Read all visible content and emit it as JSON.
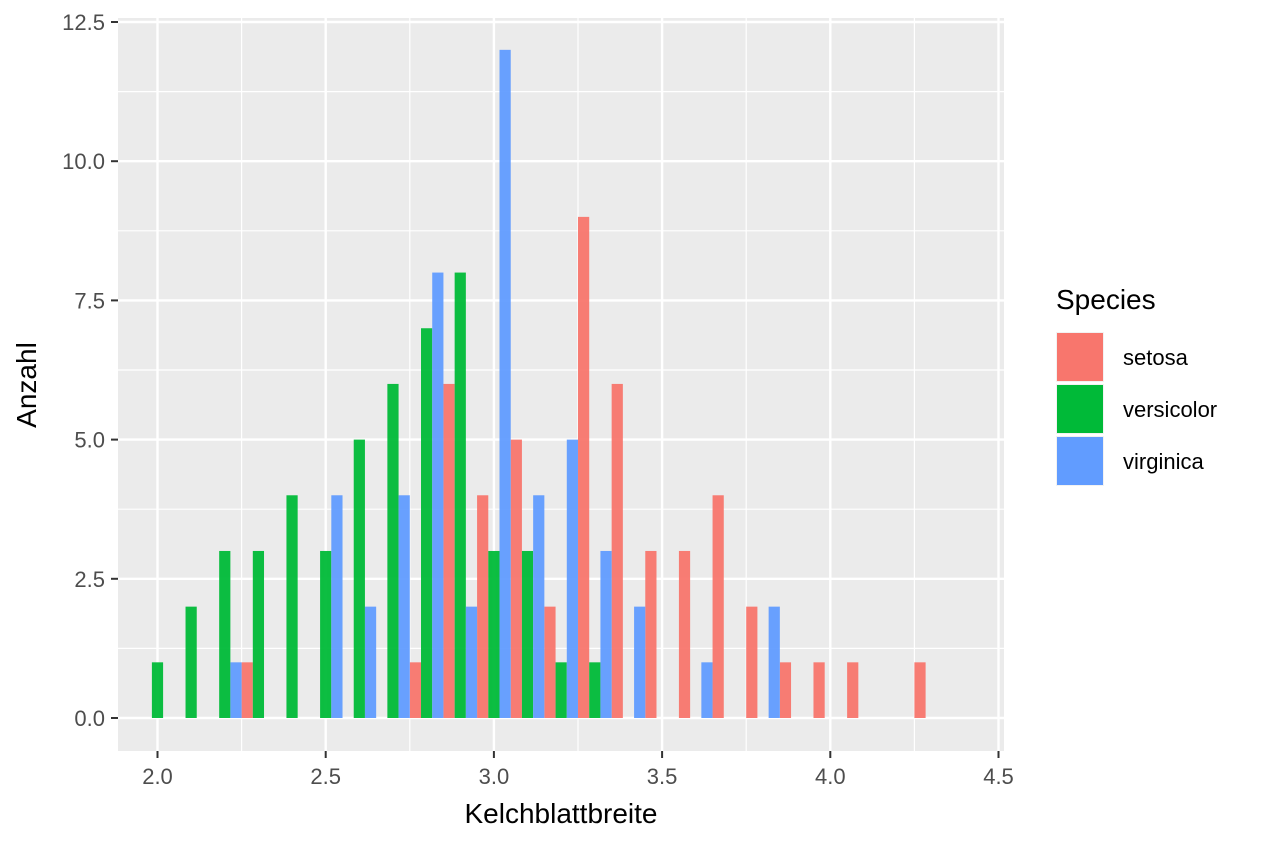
{
  "chart_data": {
    "type": "bar",
    "xlabel": "Kelchblattbreite",
    "ylabel": "Anzahl",
    "xlim": [
      2.0,
      4.5
    ],
    "ylim": [
      0,
      12.5
    ],
    "x_ticks": [
      "2.0",
      "2.5",
      "3.0",
      "3.5",
      "4.0",
      "4.5"
    ],
    "y_ticks": [
      "0.0",
      "2.5",
      "5.0",
      "7.5",
      "10.0",
      "12.5"
    ],
    "grid": true,
    "legend_position": "right",
    "legend_title": "Species",
    "background": "#ebebeb",
    "series": [
      {
        "name": "setosa",
        "color": "#f8766d",
        "points": [
          {
            "x": 2.3,
            "y": 1
          },
          {
            "x": 2.8,
            "y": 1
          },
          {
            "x": 2.9,
            "y": 6
          },
          {
            "x": 3.0,
            "y": 4
          },
          {
            "x": 3.1,
            "y": 5
          },
          {
            "x": 3.2,
            "y": 2
          },
          {
            "x": 3.3,
            "y": 9
          },
          {
            "x": 3.4,
            "y": 6
          },
          {
            "x": 3.5,
            "y": 3
          },
          {
            "x": 3.6,
            "y": 3
          },
          {
            "x": 3.7,
            "y": 4
          },
          {
            "x": 3.8,
            "y": 2
          },
          {
            "x": 3.9,
            "y": 1
          },
          {
            "x": 4.0,
            "y": 1
          },
          {
            "x": 4.1,
            "y": 1
          },
          {
            "x": 4.3,
            "y": 1
          }
        ]
      },
      {
        "name": "versicolor",
        "color": "#00ba38",
        "points": [
          {
            "x": 2.0,
            "y": 1
          },
          {
            "x": 2.1,
            "y": 2
          },
          {
            "x": 2.2,
            "y": 3
          },
          {
            "x": 2.3,
            "y": 3
          },
          {
            "x": 2.4,
            "y": 4
          },
          {
            "x": 2.5,
            "y": 3
          },
          {
            "x": 2.6,
            "y": 5
          },
          {
            "x": 2.7,
            "y": 6
          },
          {
            "x": 2.8,
            "y": 7
          },
          {
            "x": 2.9,
            "y": 8
          },
          {
            "x": 3.0,
            "y": 3
          },
          {
            "x": 3.1,
            "y": 3
          },
          {
            "x": 3.2,
            "y": 1
          },
          {
            "x": 3.3,
            "y": 1
          }
        ]
      },
      {
        "name": "virginica",
        "color": "#619cff",
        "points": [
          {
            "x": 2.2,
            "y": 1
          },
          {
            "x": 2.5,
            "y": 4
          },
          {
            "x": 2.6,
            "y": 2
          },
          {
            "x": 2.7,
            "y": 4
          },
          {
            "x": 2.8,
            "y": 8
          },
          {
            "x": 2.9,
            "y": 2
          },
          {
            "x": 3.0,
            "y": 12
          },
          {
            "x": 3.1,
            "y": 4
          },
          {
            "x": 3.2,
            "y": 5
          },
          {
            "x": 3.3,
            "y": 3
          },
          {
            "x": 3.4,
            "y": 2
          },
          {
            "x": 3.6,
            "y": 1
          },
          {
            "x": 3.8,
            "y": 2
          }
        ]
      }
    ]
  }
}
